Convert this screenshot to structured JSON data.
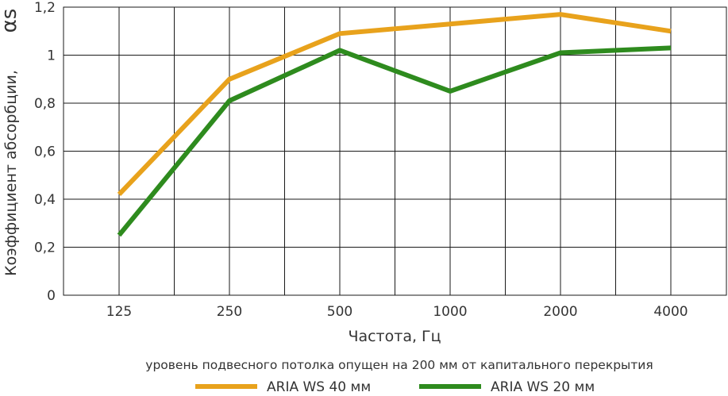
{
  "chart_data": {
    "type": "line",
    "categories": [
      "125",
      "250",
      "500",
      "1000",
      "2000",
      "4000"
    ],
    "series": [
      {
        "name": "ARIA WS 40 мм",
        "color": "#e8a21c",
        "values": [
          0.42,
          0.9,
          1.09,
          1.13,
          1.17,
          1.1
        ]
      },
      {
        "name": "ARIA WS 20 мм",
        "color": "#2e8b1e",
        "values": [
          0.25,
          0.81,
          1.02,
          0.85,
          1.01,
          1.03
        ]
      }
    ],
    "ylim": [
      0,
      1.2
    ],
    "yticks": [
      "0",
      "0,2",
      "0,4",
      "0,6",
      "0,8",
      "1",
      "1,2"
    ],
    "xlabel": "Частота, Гц",
    "ylabel": "Коэффициент абсорбции,",
    "ylabel_symbol": "αs",
    "subtitle": "уровень подвесного потолка опущен на 200 мм от капитального перекрытия",
    "grid": true,
    "legend_position": "bottom"
  }
}
